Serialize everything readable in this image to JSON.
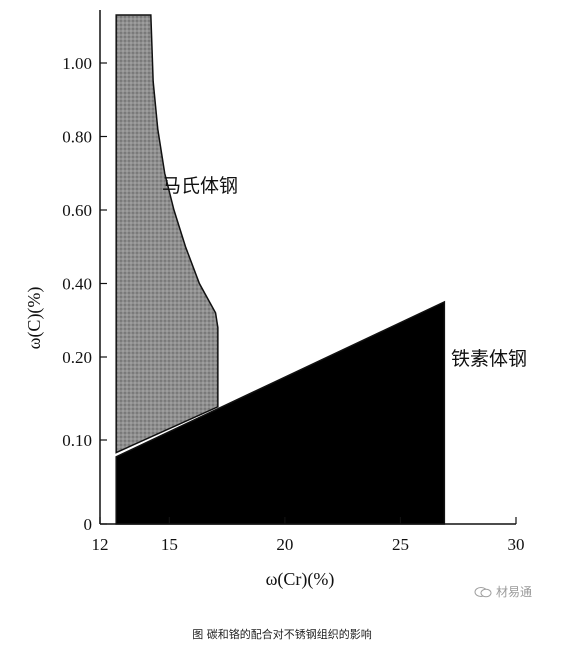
{
  "chart_data": {
    "type": "area",
    "xlabel": "ω(Cr)(%)",
    "ylabel": "ω(C)(%)",
    "x_ticks": [
      12,
      15,
      20,
      25,
      30
    ],
    "y_ticks": [
      0,
      0.1,
      0.2,
      0.4,
      0.6,
      0.8,
      1.0
    ],
    "y_tick_labels": [
      "0",
      "0.10",
      "0.20",
      "0.40",
      "0.60",
      "0.80",
      "1.00"
    ],
    "xlim": [
      12,
      30
    ],
    "ylim": [
      0,
      1.13
    ],
    "regions": [
      {
        "name": "马氏体钢",
        "fill": "#8a8a8a",
        "pattern": "stipple",
        "points": [
          [
            12.7,
            1.13
          ],
          [
            14.2,
            1.13
          ],
          [
            14.3,
            0.95
          ],
          [
            14.5,
            0.82
          ],
          [
            14.8,
            0.7
          ],
          [
            15.2,
            0.6
          ],
          [
            15.7,
            0.5
          ],
          [
            16.3,
            0.4
          ],
          [
            17.0,
            0.32
          ],
          [
            17.1,
            0.28
          ],
          [
            17.1,
            0.14
          ],
          [
            12.7,
            0.085
          ]
        ]
      },
      {
        "name": "铁素体钢",
        "fill": "#000000",
        "points": [
          [
            12.7,
            0.08
          ],
          [
            26.9,
            0.35
          ],
          [
            26.9,
            0.0
          ],
          [
            12.7,
            0.0
          ]
        ]
      }
    ]
  },
  "caption": "图 碳和铬的配合对不锈钢组织的影响",
  "watermark": "材易通"
}
